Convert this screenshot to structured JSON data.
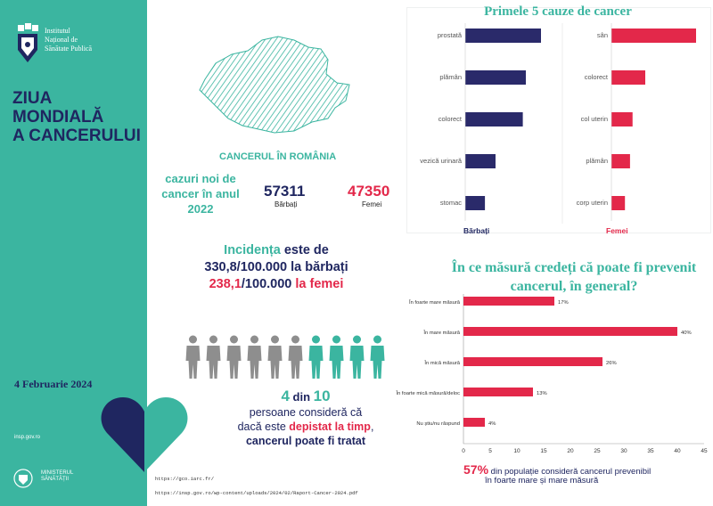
{
  "sidebar": {
    "institute_lines": [
      "Institutul",
      "Național de",
      "Sănătate Publică"
    ],
    "title_lines": [
      "ZIUA",
      "MONDIALĂ",
      "A CANCERULUI"
    ],
    "date": "4 Februarie 2024",
    "site": "insp.gov.ro",
    "ministry_lines": [
      "MINISTERUL",
      "SĂNĂTĂȚII"
    ]
  },
  "romania": {
    "title": "CANCERUL ÎN ROMÂNIA",
    "cases_lines": [
      "cazuri noi de",
      "cancer în anul",
      "2022"
    ],
    "men_count": "57311",
    "men_label": "Bărbați",
    "women_count": "47350",
    "women_label": "Femei"
  },
  "incidence": {
    "word": "Incidența",
    "rest": " este de",
    "men_value": "330,8",
    "men_unit": "/100.000",
    "men_label": " la bărbați",
    "women_value": "238,1",
    "women_unit": "/100.000",
    "women_label": " la femei"
  },
  "people": {
    "total": 10,
    "highlighted": 4
  },
  "statement": {
    "num1": "4",
    "mid": " din ",
    "num2": "10",
    "line2": "persoane consideră că",
    "line3_a": "dacă este ",
    "line3_b": "depistat la timp",
    "line3_c": ",",
    "line4": "cancerul poate fi tratat"
  },
  "references": [
    "https://gco.iarc.fr/",
    "https://insp.gov.ro/wp-content/uploads/2024/02/Raport-Cancer-2024.pdf"
  ],
  "colors": {
    "teal": "#3bb5a0",
    "navy": "#2a2a6a",
    "red": "#e3284a",
    "grey": "#8e8e8e"
  },
  "chart_data": [
    {
      "type": "bar",
      "title": "Primele 5 cauze de cancer",
      "orientation": "horizontal",
      "series": [
        {
          "name": "Bărbați",
          "categories": [
            "prostată",
            "plămân",
            "colorect",
            "vezică urinară",
            "stomac"
          ],
          "values": [
            100,
            80,
            76,
            40,
            26
          ]
        },
        {
          "name": "Femei",
          "categories": [
            "sân",
            "colorect",
            "col uterin",
            "plămân",
            "corp uterin"
          ],
          "values": [
            100,
            40,
            25,
            22,
            16
          ]
        }
      ]
    },
    {
      "type": "bar",
      "orientation": "horizontal",
      "title": "În ce măsură credeți că poate fi prevenit cancerul, în general?",
      "categories": [
        "În foarte mare măsură",
        "În mare măsură",
        "În mică măsură",
        "În foarte mică măsură/deloc",
        "Nu știu/nu răspund"
      ],
      "values": [
        17,
        40,
        26,
        13,
        4
      ],
      "value_labels": [
        "17%",
        "40%",
        "26%",
        "13%",
        "4%"
      ],
      "xlim": [
        0,
        45
      ],
      "xticks": [
        "0",
        "5",
        "10",
        "15",
        "20",
        "25",
        "30",
        "35",
        "40",
        "45"
      ]
    }
  ],
  "note": {
    "pct": "57%",
    "line1": " din populație consideră cancerul prevenibil",
    "line2": "în foarte mare și mare măsură"
  }
}
